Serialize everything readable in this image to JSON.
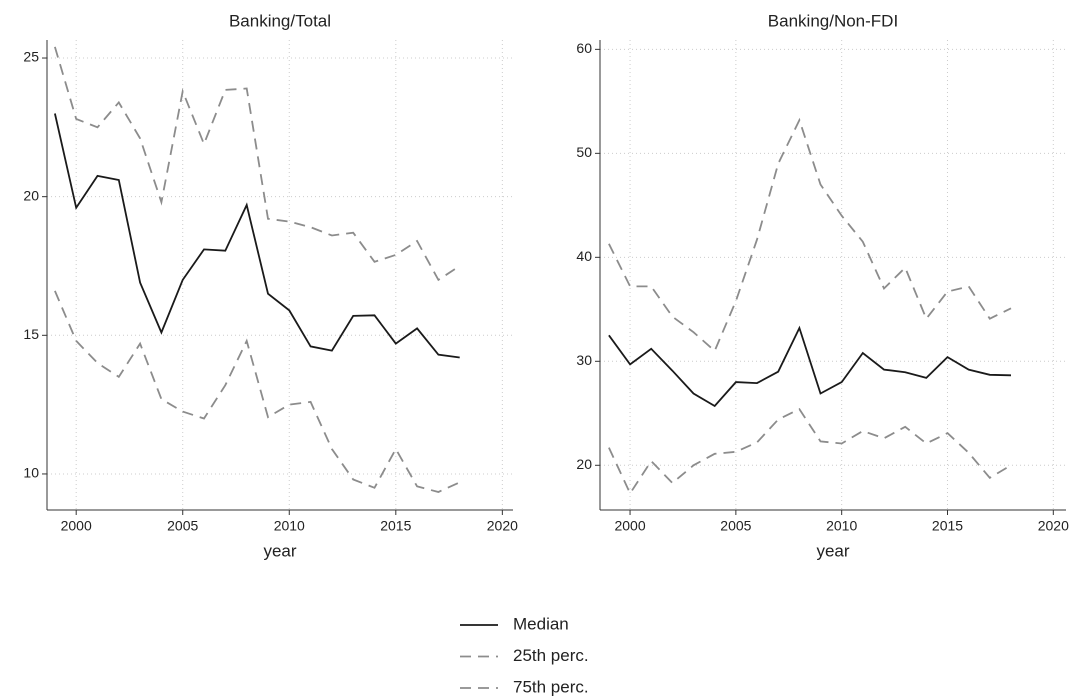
{
  "chart_data": [
    {
      "type": "line",
      "title": "Banking/Total",
      "x_label": "year",
      "x": [
        1999,
        2000,
        2001,
        2002,
        2003,
        2004,
        2005,
        2006,
        2007,
        2008,
        2009,
        2010,
        2011,
        2012,
        2013,
        2014,
        2015,
        2016,
        2017,
        2018
      ],
      "series": [
        {
          "name": "Median",
          "color": "#1a1a1a",
          "linestyle": "solid",
          "values": [
            23.0,
            19.6,
            20.75,
            20.6,
            16.9,
            15.1,
            17.0,
            18.1,
            18.05,
            19.7,
            16.5,
            15.9,
            14.6,
            14.45,
            15.7,
            15.72,
            14.7,
            15.25,
            14.3,
            14.2
          ]
        },
        {
          "name": "25th perc.",
          "color": "#8c8c8c",
          "linestyle": "dashed",
          "values": [
            16.6,
            14.8,
            14.0,
            13.5,
            14.7,
            12.7,
            12.25,
            12.0,
            13.2,
            14.8,
            12.05,
            12.5,
            12.6,
            10.9,
            9.8,
            9.5,
            10.9,
            9.55,
            9.35,
            9.7
          ]
        },
        {
          "name": "75th perc.",
          "color": "#8c8c8c",
          "linestyle": "dashed",
          "values": [
            25.4,
            22.8,
            22.5,
            23.4,
            22.1,
            19.8,
            23.8,
            21.9,
            23.85,
            23.9,
            19.2,
            19.1,
            18.9,
            18.6,
            18.7,
            17.65,
            17.9,
            18.4,
            17.0,
            17.5
          ]
        }
      ],
      "xlim": [
        1998.63,
        2020.5
      ],
      "xticks": [
        2000,
        2005,
        2010,
        2015,
        2020
      ],
      "ylim": [
        8.7,
        25.65
      ],
      "yticks": [
        10,
        15,
        20,
        25
      ],
      "grid": true
    },
    {
      "type": "line",
      "title": "Banking/Non-FDI",
      "x_label": "year",
      "x": [
        1999,
        2000,
        2001,
        2002,
        2003,
        2004,
        2005,
        2006,
        2007,
        2008,
        2009,
        2010,
        2011,
        2012,
        2013,
        2014,
        2015,
        2016,
        2017,
        2018
      ],
      "series": [
        {
          "name": "Median",
          "color": "#1a1a1a",
          "linestyle": "solid",
          "values": [
            32.5,
            29.7,
            31.2,
            29.1,
            26.9,
            25.7,
            28.0,
            27.9,
            29.0,
            33.2,
            26.9,
            28.0,
            30.8,
            29.2,
            28.95,
            28.4,
            30.4,
            29.2,
            28.7,
            28.65
          ]
        },
        {
          "name": "25th perc.",
          "color": "#8c8c8c",
          "linestyle": "dashed",
          "values": [
            21.7,
            17.3,
            20.4,
            18.3,
            20.0,
            21.1,
            21.3,
            22.2,
            24.4,
            25.4,
            22.3,
            22.1,
            23.3,
            22.6,
            23.7,
            22.1,
            23.1,
            21.2,
            18.8,
            20.0
          ]
        },
        {
          "name": "75th perc.",
          "color": "#8c8c8c",
          "linestyle": "dashed",
          "values": [
            41.3,
            37.2,
            37.2,
            34.3,
            32.8,
            31.0,
            35.8,
            41.7,
            49.0,
            53.2,
            47.0,
            44.0,
            41.5,
            37.0,
            39.0,
            34.1,
            36.7,
            37.2,
            34.1,
            35.1
          ]
        }
      ],
      "xlim": [
        1998.58,
        2020.6
      ],
      "xticks": [
        2000,
        2005,
        2010,
        2015,
        2020
      ],
      "ylim": [
        15.7,
        60.9
      ],
      "yticks": [
        20,
        30,
        40,
        50,
        60
      ],
      "grid": true
    }
  ]
}
